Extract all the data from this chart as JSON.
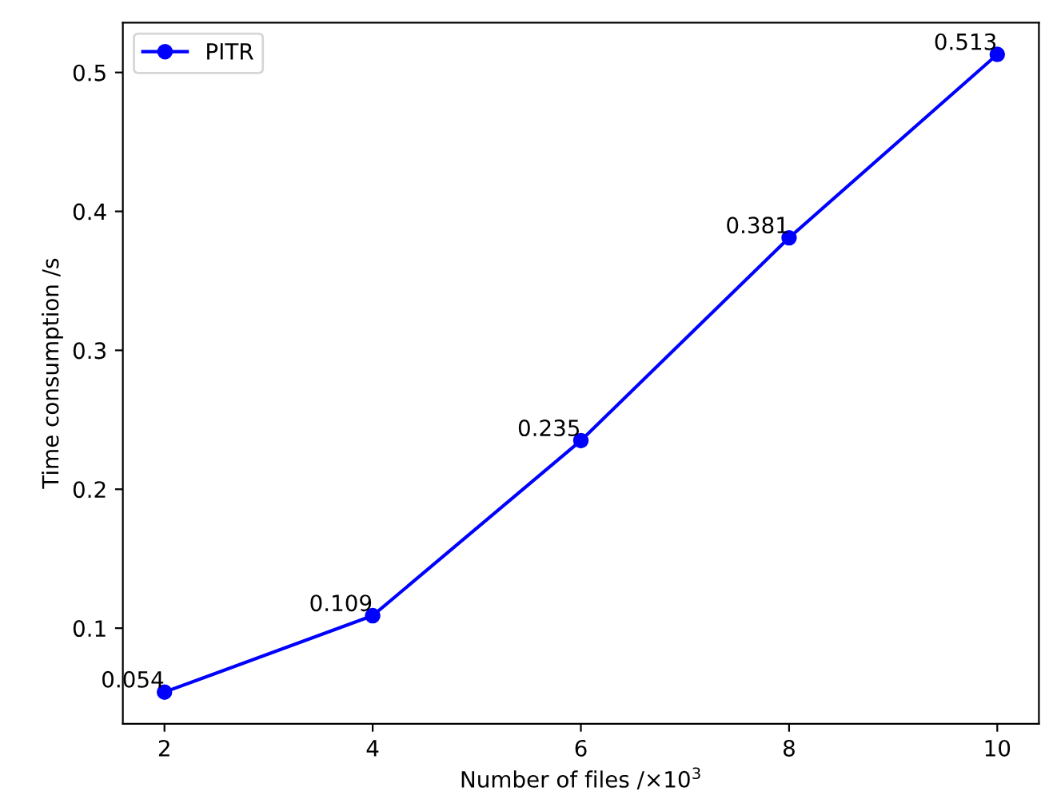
{
  "chart_data": {
    "type": "line",
    "xlabel": "Number of files /×10$^{3}$",
    "ylabel": "Time consumption /s",
    "x": [
      2,
      4,
      6,
      8,
      10
    ],
    "series": [
      {
        "name": "PITR",
        "color": "#0000ff",
        "values": [
          0.054,
          0.109,
          0.235,
          0.381,
          0.513
        ]
      }
    ],
    "xlim": [
      1.6,
      10.4
    ],
    "ylim": [
      0.0311,
      0.5359
    ],
    "xticks": [
      2,
      4,
      6,
      8,
      10
    ],
    "yticks": [
      0.1,
      0.2,
      0.3,
      0.4,
      0.5
    ],
    "data_labels": true,
    "legend": "top left",
    "marker": "circle",
    "line_style": "solid",
    "grid": false
  }
}
